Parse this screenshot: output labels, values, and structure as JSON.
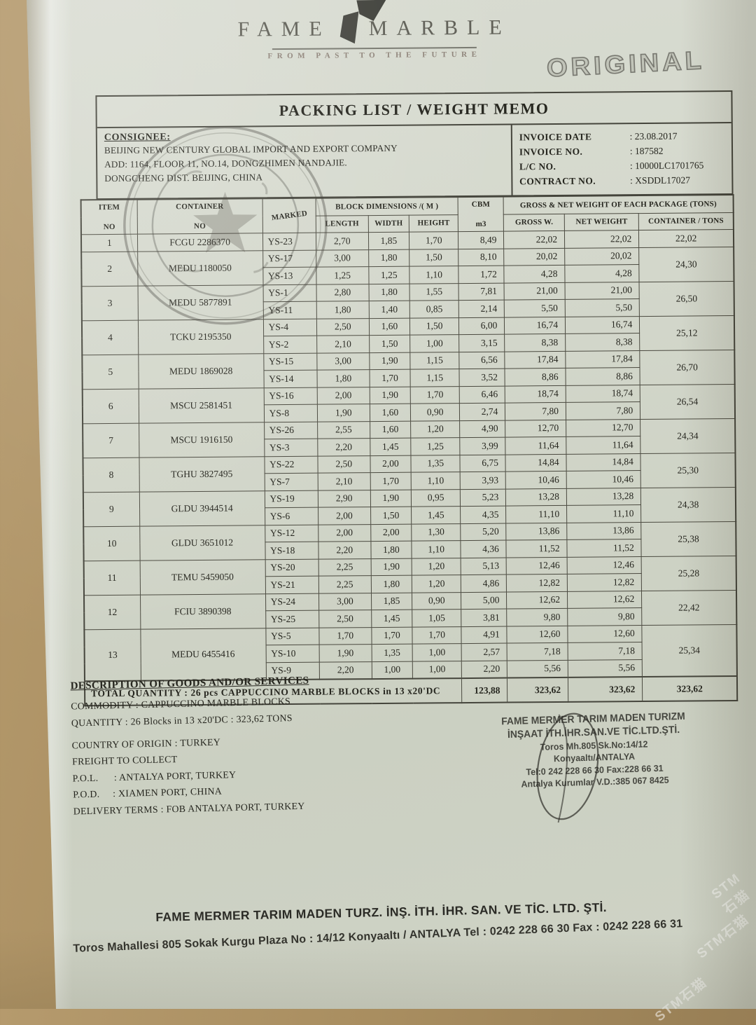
{
  "page": {
    "watermark_text": "STM石猫"
  },
  "brand": {
    "name_left": "FAME",
    "name_right": "MARBLE",
    "tagline": "FROM PAST TO THE FUTURE",
    "copy_stamp": "ORIGINAL"
  },
  "memo": {
    "title": "PACKING LIST / WEIGHT MEMO",
    "consignee": {
      "label": "CONSIGNEE:",
      "lines": [
        "BEIJING NEW CENTURY GLOBAL IMPORT  AND EXPORT COMPANY",
        "ADD: 1164, FLOOR 11, NO.14, DONGZHIMEN NANDAJIE.",
        "DONGCHENG DIST. BEIJING, CHINA"
      ]
    },
    "invoice": {
      "rows": [
        {
          "label": "INVOICE  DATE",
          "value": ": 23.08.2017"
        },
        {
          "label": "INVOICE  NO.",
          "value": ": 187582"
        },
        {
          "label": "L/C  NO.",
          "value": ": 10000LC1701765"
        },
        {
          "label": "CONTRACT NO.",
          "value": ": XSDDL17027"
        }
      ]
    }
  },
  "table": {
    "headers": {
      "item_l1": "ITEM",
      "item_l2": "NO",
      "container_l1": "CONTAINER",
      "container_l2": "NO",
      "marked": "MARKED",
      "block_dims": "BLOCK  DIMENSIONS /( M )",
      "length": "LENGTH",
      "width": "WIDTH",
      "height": "HEIGHT",
      "cbm_l1": "CBM",
      "cbm_l2": "m3",
      "weights": "GROSS & NET WEIGHT OF EACH PACKAGE (TONS)",
      "gross": "GROSS W.",
      "net": "NET WEIGHT",
      "tons": "CONTAINER / TONS"
    },
    "items": [
      {
        "no": "1",
        "container": "FCGU 2286370",
        "container_tons": "22,02",
        "rows": [
          {
            "marked": "YS-23",
            "length": "2,70",
            "width": "1,85",
            "height": "1,70",
            "cbm": "8,49",
            "gross": "22,02",
            "net": "22,02"
          }
        ]
      },
      {
        "no": "2",
        "container": "MEDU 1180050",
        "container_tons": "24,30",
        "rows": [
          {
            "marked": "YS-17",
            "length": "3,00",
            "width": "1,80",
            "height": "1,50",
            "cbm": "8,10",
            "gross": "20,02",
            "net": "20,02"
          },
          {
            "marked": "YS-13",
            "length": "1,25",
            "width": "1,25",
            "height": "1,10",
            "cbm": "1,72",
            "gross": "4,28",
            "net": "4,28"
          }
        ]
      },
      {
        "no": "3",
        "container": "MEDU 5877891",
        "container_tons": "26,50",
        "rows": [
          {
            "marked": "YS-1",
            "length": "2,80",
            "width": "1,80",
            "height": "1,55",
            "cbm": "7,81",
            "gross": "21,00",
            "net": "21,00"
          },
          {
            "marked": "YS-11",
            "length": "1,80",
            "width": "1,40",
            "height": "0,85",
            "cbm": "2,14",
            "gross": "5,50",
            "net": "5,50"
          }
        ]
      },
      {
        "no": "4",
        "container": "TCKU 2195350",
        "container_tons": "25,12",
        "rows": [
          {
            "marked": "YS-4",
            "length": "2,50",
            "width": "1,60",
            "height": "1,50",
            "cbm": "6,00",
            "gross": "16,74",
            "net": "16,74"
          },
          {
            "marked": "YS-2",
            "length": "2,10",
            "width": "1,50",
            "height": "1,00",
            "cbm": "3,15",
            "gross": "8,38",
            "net": "8,38"
          }
        ]
      },
      {
        "no": "5",
        "container": "MEDU 1869028",
        "container_tons": "26,70",
        "rows": [
          {
            "marked": "YS-15",
            "length": "3,00",
            "width": "1,90",
            "height": "1,15",
            "cbm": "6,56",
            "gross": "17,84",
            "net": "17,84"
          },
          {
            "marked": "YS-14",
            "length": "1,80",
            "width": "1,70",
            "height": "1,15",
            "cbm": "3,52",
            "gross": "8,86",
            "net": "8,86"
          }
        ]
      },
      {
        "no": "6",
        "container": "MSCU 2581451",
        "container_tons": "26,54",
        "rows": [
          {
            "marked": "YS-16",
            "length": "2,00",
            "width": "1,90",
            "height": "1,70",
            "cbm": "6,46",
            "gross": "18,74",
            "net": "18,74"
          },
          {
            "marked": "YS-8",
            "length": "1,90",
            "width": "1,60",
            "height": "0,90",
            "cbm": "2,74",
            "gross": "7,80",
            "net": "7,80"
          }
        ]
      },
      {
        "no": "7",
        "container": "MSCU 1916150",
        "container_tons": "24,34",
        "rows": [
          {
            "marked": "YS-26",
            "length": "2,55",
            "width": "1,60",
            "height": "1,20",
            "cbm": "4,90",
            "gross": "12,70",
            "net": "12,70"
          },
          {
            "marked": "YS-3",
            "length": "2,20",
            "width": "1,45",
            "height": "1,25",
            "cbm": "3,99",
            "gross": "11,64",
            "net": "11,64"
          }
        ]
      },
      {
        "no": "8",
        "container": "TGHU 3827495",
        "container_tons": "25,30",
        "rows": [
          {
            "marked": "YS-22",
            "length": "2,50",
            "width": "2,00",
            "height": "1,35",
            "cbm": "6,75",
            "gross": "14,84",
            "net": "14,84"
          },
          {
            "marked": "YS-7",
            "length": "2,10",
            "width": "1,70",
            "height": "1,10",
            "cbm": "3,93",
            "gross": "10,46",
            "net": "10,46"
          }
        ]
      },
      {
        "no": "9",
        "container": "GLDU 3944514",
        "container_tons": "24,38",
        "rows": [
          {
            "marked": "YS-19",
            "length": "2,90",
            "width": "1,90",
            "height": "0,95",
            "cbm": "5,23",
            "gross": "13,28",
            "net": "13,28"
          },
          {
            "marked": "YS-6",
            "length": "2,00",
            "width": "1,50",
            "height": "1,45",
            "cbm": "4,35",
            "gross": "11,10",
            "net": "11,10"
          }
        ]
      },
      {
        "no": "10",
        "container": "GLDU 3651012",
        "container_tons": "25,38",
        "rows": [
          {
            "marked": "YS-12",
            "length": "2,00",
            "width": "2,00",
            "height": "1,30",
            "cbm": "5,20",
            "gross": "13,86",
            "net": "13,86"
          },
          {
            "marked": "YS-18",
            "length": "2,20",
            "width": "1,80",
            "height": "1,10",
            "cbm": "4,36",
            "gross": "11,52",
            "net": "11,52"
          }
        ]
      },
      {
        "no": "11",
        "container": "TEMU 5459050",
        "container_tons": "25,28",
        "rows": [
          {
            "marked": "YS-20",
            "length": "2,25",
            "width": "1,90",
            "height": "1,20",
            "cbm": "5,13",
            "gross": "12,46",
            "net": "12,46"
          },
          {
            "marked": "YS-21",
            "length": "2,25",
            "width": "1,80",
            "height": "1,20",
            "cbm": "4,86",
            "gross": "12,82",
            "net": "12,82"
          }
        ]
      },
      {
        "no": "12",
        "container": "FCIU 3890398",
        "container_tons": "22,42",
        "rows": [
          {
            "marked": "YS-24",
            "length": "3,00",
            "width": "1,85",
            "height": "0,90",
            "cbm": "5,00",
            "gross": "12,62",
            "net": "12,62"
          },
          {
            "marked": "YS-25",
            "length": "2,50",
            "width": "1,45",
            "height": "1,05",
            "cbm": "3,81",
            "gross": "9,80",
            "net": "9,80"
          }
        ]
      },
      {
        "no": "13",
        "container": "MEDU 6455416",
        "container_tons": "25,34",
        "rows": [
          {
            "marked": "YS-5",
            "length": "1,70",
            "width": "1,70",
            "height": "1,70",
            "cbm": "4,91",
            "gross": "12,60",
            "net": "12,60"
          },
          {
            "marked": "YS-10",
            "length": "1,90",
            "width": "1,35",
            "height": "1,00",
            "cbm": "2,57",
            "gross": "7,18",
            "net": "7,18"
          },
          {
            "marked": "YS-9",
            "length": "2,20",
            "width": "1,00",
            "height": "1,00",
            "cbm": "2,20",
            "gross": "5,56",
            "net": "5,56"
          }
        ]
      }
    ],
    "total": {
      "label": "TOTAL QUANTITY  :  26 pcs CAPPUCCINO MARBLE BLOCKS in 13 x20'DC",
      "cbm": "123,88",
      "gross": "323,62",
      "net": "323,62",
      "container_tons": "323,62"
    }
  },
  "description": {
    "heading": "DESCRIPTION OF GOODS AND/OR SERVICES",
    "lines": [
      "COMMODITY : CAPPUCCINO MARBLE BLOCKS",
      "QUANTITY : 26  Blocks in 13 x20'DC :  323,62 TONS",
      "COUNTRY OF ORIGIN  : TURKEY",
      "FREIGHT TO COLLECT",
      "P.O.L.      : ANTALYA PORT, TURKEY",
      "P.O.D.     : XIAMEN PORT, CHINA",
      "DELIVERY TERMS : FOB ANTALYA  PORT, TURKEY"
    ]
  },
  "supplier_stamp": {
    "lines": [
      "FAME MERMER TARIM MADEN TURIZM",
      "İNŞAAT İTH.İHR.SAN.VE TİC.LTD.ŞTİ.",
      "Toros Mh.805 Sk.No:14/12",
      "Konyaaltı/ANTALYA",
      "Tel:0 242 228 66 30 Fax:228 66 31",
      "Antalya Kurumlar V.D.:385 067 8425"
    ]
  },
  "footer": {
    "line1": "FAME MERMER TARIM MADEN TURZ. İNŞ. İTH. İHR. SAN. VE TİC. LTD. ŞTİ.",
    "line2": "Toros Mahallesi 805 Sokak Kurgu Plaza No : 14/12   Konyaaltı / ANTALYA   Tel : 0242 228 66 30   Fax : 0242 228 66 31"
  }
}
